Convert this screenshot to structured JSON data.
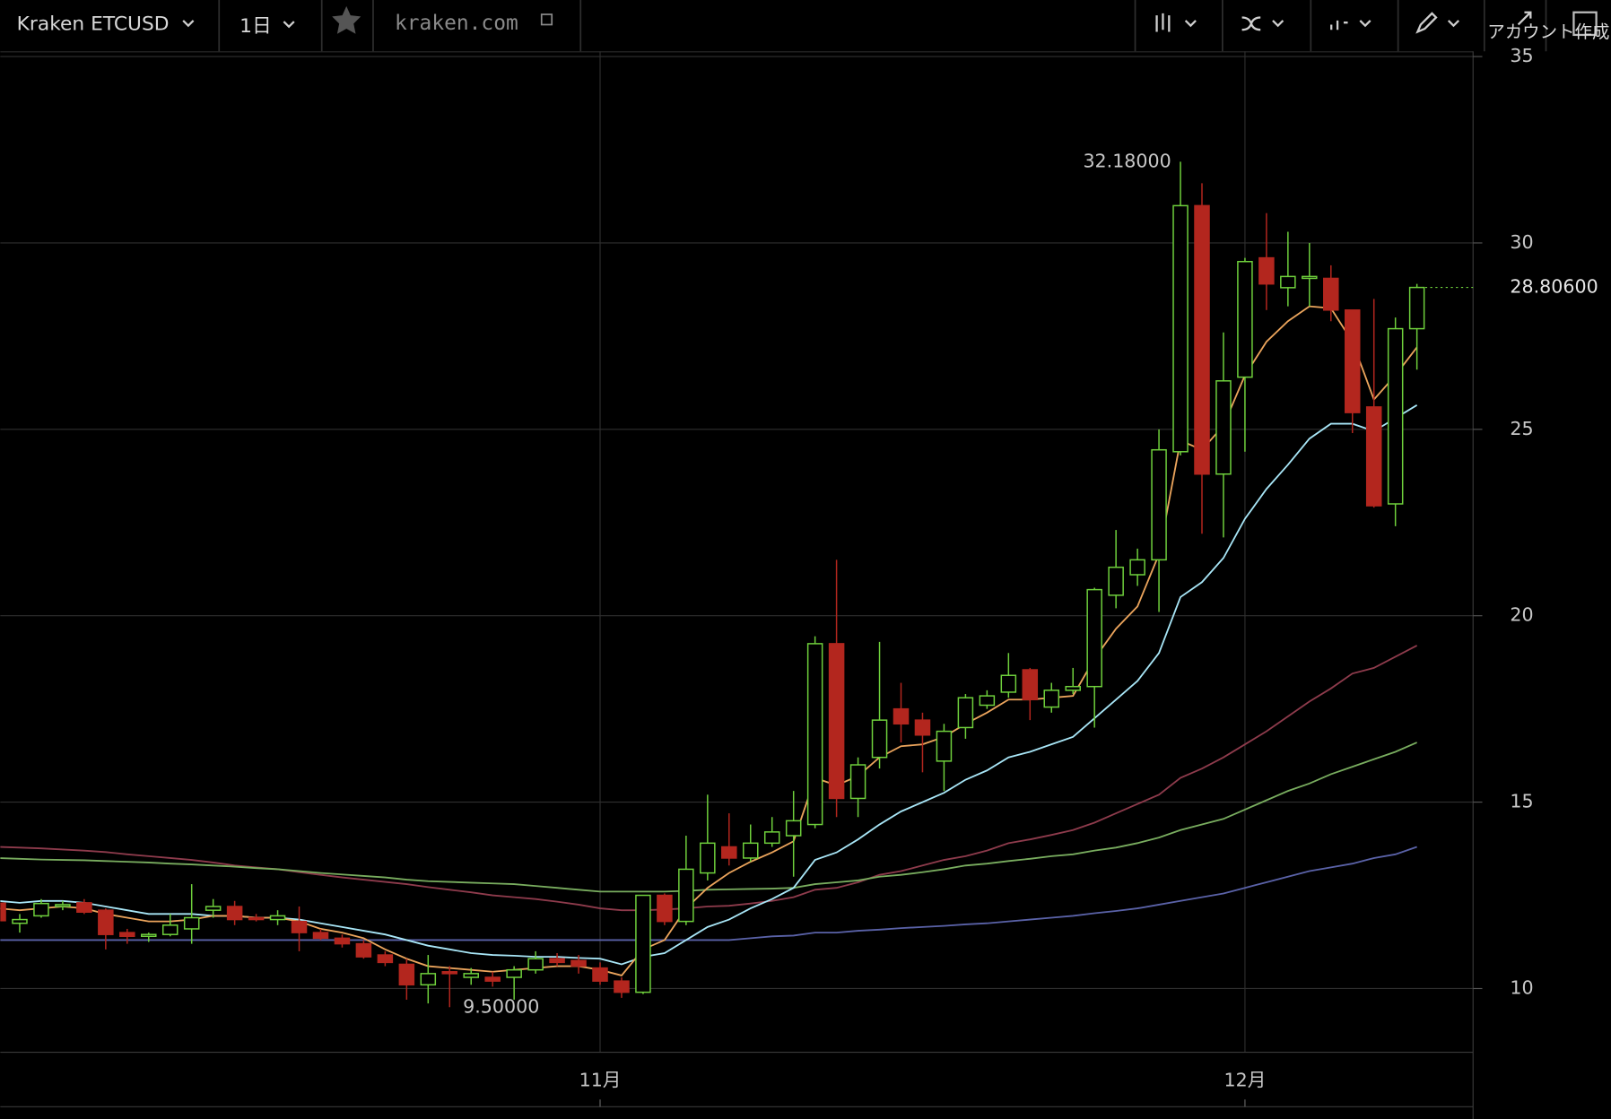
{
  "toolbar": {
    "symbol": "Kraken ETCUSD",
    "interval": "1日",
    "source": "kraken.com",
    "account": "アカウント作成"
  },
  "chart_data": {
    "type": "candlestick",
    "categories": [
      null,
      null,
      null,
      null,
      null,
      null,
      null,
      null,
      null,
      null,
      null,
      null,
      null,
      null,
      null,
      null,
      null,
      null,
      null,
      null,
      null,
      null,
      null,
      null,
      null,
      null,
      null,
      null,
      "11月",
      null,
      null,
      null,
      null,
      null,
      null,
      null,
      null,
      null,
      null,
      null,
      null,
      null,
      null,
      null,
      null,
      null,
      null,
      null,
      null,
      null,
      null,
      null,
      null,
      null,
      null,
      null,
      null,
      null,
      "12月",
      null,
      null,
      null,
      null,
      null,
      null,
      null,
      null
    ],
    "open": [
      12.29,
      11.75,
      11.95,
      12.2,
      12.3,
      12.1,
      11.5,
      11.4,
      11.45,
      11.6,
      12.1,
      12.2,
      11.9,
      11.85,
      11.8,
      11.5,
      11.35,
      11.2,
      10.9,
      10.65,
      10.1,
      10.45,
      10.3,
      10.3,
      10.3,
      10.5,
      10.8,
      10.75,
      10.55,
      10.2,
      9.9,
      12.5,
      11.8,
      13.1,
      13.8,
      13.5,
      13.9,
      14.1,
      14.4,
      19.25,
      15.1,
      16.2,
      17.5,
      17.2,
      16.1,
      17.0,
      17.6,
      17.95,
      18.55,
      17.55,
      18.0,
      18.1,
      20.55,
      21.1,
      21.5,
      24.4,
      31.0,
      23.8,
      26.4,
      29.6,
      28.8,
      29.05,
      29.05,
      28.2,
      25.6,
      23.0,
      27.7
    ],
    "high": [
      12.4,
      12.0,
      12.4,
      12.35,
      12.4,
      12.15,
      11.6,
      11.5,
      12.0,
      12.8,
      12.4,
      12.35,
      12.0,
      12.1,
      12.2,
      11.6,
      11.45,
      11.3,
      11.0,
      10.8,
      10.9,
      10.6,
      10.55,
      10.45,
      10.6,
      11.0,
      10.95,
      10.9,
      10.7,
      10.3,
      12.5,
      12.55,
      14.1,
      15.2,
      14.7,
      14.4,
      14.6,
      15.3,
      19.45,
      21.5,
      16.2,
      19.3,
      18.2,
      17.4,
      17.1,
      17.9,
      18.0,
      19.0,
      18.6,
      18.2,
      18.6,
      20.75,
      22.3,
      21.8,
      25.0,
      32.18,
      31.6,
      27.6,
      29.6,
      30.8,
      30.3,
      30.0,
      29.4,
      28.2,
      28.5,
      28.0,
      28.9
    ],
    "low": [
      11.7,
      11.5,
      11.9,
      12.1,
      12.0,
      11.05,
      11.2,
      11.25,
      11.4,
      11.2,
      11.9,
      11.7,
      11.8,
      11.7,
      11.0,
      11.3,
      11.1,
      10.8,
      10.6,
      9.7,
      9.6,
      9.5,
      10.1,
      10.05,
      9.7,
      10.4,
      10.6,
      10.4,
      10.1,
      9.75,
      9.85,
      11.7,
      11.7,
      12.9,
      13.3,
      13.4,
      13.8,
      13.0,
      14.3,
      14.6,
      14.6,
      15.9,
      16.6,
      15.8,
      15.3,
      16.7,
      17.5,
      17.8,
      17.2,
      17.4,
      17.9,
      17.0,
      20.2,
      20.8,
      20.1,
      24.3,
      22.2,
      22.1,
      24.4,
      28.2,
      28.3,
      28.3,
      27.9,
      24.9,
      22.9,
      22.4,
      26.6
    ],
    "close": [
      11.82,
      11.85,
      12.28,
      12.25,
      12.05,
      11.45,
      11.4,
      11.45,
      11.7,
      11.9,
      12.2,
      11.85,
      11.85,
      11.95,
      11.5,
      11.35,
      11.2,
      10.85,
      10.7,
      10.1,
      10.4,
      10.4,
      10.4,
      10.2,
      10.5,
      10.8,
      10.7,
      10.6,
      10.2,
      9.9,
      12.5,
      11.8,
      13.2,
      13.9,
      13.5,
      13.9,
      14.2,
      14.5,
      19.25,
      15.1,
      16.0,
      17.2,
      17.1,
      16.8,
      16.9,
      17.8,
      17.85,
      18.4,
      17.75,
      18.0,
      18.1,
      20.7,
      21.3,
      21.5,
      24.45,
      31.0,
      23.8,
      26.3,
      29.5,
      28.9,
      29.1,
      29.1,
      28.2,
      25.45,
      22.95,
      27.7,
      28.806
    ],
    "up_color": "#6fd03c",
    "down_color": "#b3261e",
    "moving_averages": [
      {
        "color": "#8e3b4c",
        "values": [
          13.8,
          13.78,
          13.76,
          13.73,
          13.7,
          13.66,
          13.6,
          13.55,
          13.5,
          13.45,
          13.38,
          13.3,
          13.25,
          13.2,
          13.12,
          13.05,
          12.98,
          12.92,
          12.86,
          12.8,
          12.72,
          12.65,
          12.58,
          12.5,
          12.45,
          12.4,
          12.33,
          12.25,
          12.15,
          12.1,
          12.1,
          12.12,
          12.15,
          12.2,
          12.22,
          12.28,
          12.35,
          12.45,
          12.65,
          12.7,
          12.85,
          13.05,
          13.15,
          13.3,
          13.45,
          13.55,
          13.7,
          13.9,
          14.0,
          14.12,
          14.25,
          14.45,
          14.7,
          14.95,
          15.2,
          15.65,
          15.9,
          16.2,
          16.55,
          16.9,
          17.3,
          17.7,
          18.05,
          18.45,
          18.6,
          18.9,
          19.2
        ]
      },
      {
        "color": "#79ad5f",
        "values": [
          13.5,
          13.48,
          13.46,
          13.45,
          13.44,
          13.42,
          13.4,
          13.38,
          13.35,
          13.33,
          13.3,
          13.27,
          13.23,
          13.2,
          13.15,
          13.1,
          13.06,
          13.02,
          12.98,
          12.92,
          12.88,
          12.86,
          12.84,
          12.82,
          12.8,
          12.75,
          12.7,
          12.65,
          12.6,
          12.6,
          12.6,
          12.6,
          12.62,
          12.65,
          12.66,
          12.67,
          12.68,
          12.7,
          12.8,
          12.85,
          12.9,
          13.0,
          13.05,
          13.12,
          13.2,
          13.3,
          13.35,
          13.42,
          13.48,
          13.55,
          13.6,
          13.7,
          13.78,
          13.9,
          14.05,
          14.25,
          14.4,
          14.55,
          14.8,
          15.05,
          15.3,
          15.5,
          15.75,
          15.95,
          16.15,
          16.35,
          16.6
        ]
      },
      {
        "color": "#5a62a8",
        "values": [
          11.3,
          11.3,
          11.3,
          11.3,
          11.3,
          11.3,
          11.3,
          11.3,
          11.3,
          11.3,
          11.3,
          11.3,
          11.3,
          11.3,
          11.3,
          11.3,
          11.3,
          11.3,
          11.3,
          11.3,
          11.3,
          11.3,
          11.3,
          11.3,
          11.3,
          11.3,
          11.3,
          11.3,
          11.3,
          11.3,
          11.3,
          11.3,
          11.3,
          11.3,
          11.3,
          11.35,
          11.4,
          11.42,
          11.5,
          11.5,
          11.55,
          11.58,
          11.62,
          11.65,
          11.68,
          11.72,
          11.75,
          11.8,
          11.85,
          11.9,
          11.95,
          12.02,
          12.08,
          12.15,
          12.25,
          12.35,
          12.45,
          12.55,
          12.7,
          12.85,
          13.0,
          13.15,
          13.25,
          13.35,
          13.5,
          13.6,
          13.8
        ]
      },
      {
        "color": "#a8e6f7",
        "values": [
          12.35,
          12.3,
          12.35,
          12.35,
          12.3,
          12.2,
          12.1,
          12.0,
          12.0,
          12.0,
          11.95,
          11.95,
          11.9,
          11.9,
          11.85,
          11.75,
          11.65,
          11.55,
          11.45,
          11.3,
          11.15,
          11.05,
          10.95,
          10.9,
          10.88,
          10.85,
          10.85,
          10.82,
          10.8,
          10.65,
          10.85,
          10.95,
          11.3,
          11.65,
          11.85,
          12.15,
          12.4,
          12.7,
          13.45,
          13.65,
          14.0,
          14.4,
          14.75,
          15.0,
          15.25,
          15.6,
          15.85,
          16.2,
          16.35,
          16.55,
          16.75,
          17.25,
          17.75,
          18.25,
          19.0,
          20.5,
          20.9,
          21.55,
          22.6,
          23.4,
          24.05,
          24.75,
          25.15,
          25.15,
          24.95,
          25.3,
          25.65
        ]
      },
      {
        "color": "#eba45c",
        "values": [
          12.15,
          12.1,
          12.15,
          12.2,
          12.15,
          12.0,
          11.9,
          11.8,
          11.8,
          11.85,
          11.95,
          11.95,
          11.9,
          11.9,
          11.8,
          11.6,
          11.5,
          11.35,
          11.05,
          10.8,
          10.6,
          10.55,
          10.5,
          10.45,
          10.5,
          10.55,
          10.6,
          10.6,
          10.5,
          10.35,
          11.05,
          11.3,
          12.15,
          12.7,
          13.1,
          13.4,
          13.65,
          13.95,
          15.65,
          15.45,
          15.7,
          16.2,
          16.5,
          16.55,
          16.75,
          17.1,
          17.4,
          17.75,
          17.75,
          17.8,
          17.85,
          18.85,
          19.65,
          20.25,
          21.65,
          24.7,
          24.45,
          25.1,
          26.45,
          27.35,
          27.9,
          28.3,
          28.25,
          27.35,
          25.8,
          26.45,
          27.2
        ]
      }
    ],
    "annotations": [
      {
        "value": 32.18,
        "label": "32.18000"
      },
      {
        "value": 9.5,
        "label": "9.50000"
      },
      {
        "value": 28.806,
        "label": "28.80600"
      }
    ],
    "ylim": [
      8.29,
      35.14
    ],
    "yticks": [
      10,
      15,
      20,
      25,
      30,
      35
    ],
    "grid": true
  }
}
